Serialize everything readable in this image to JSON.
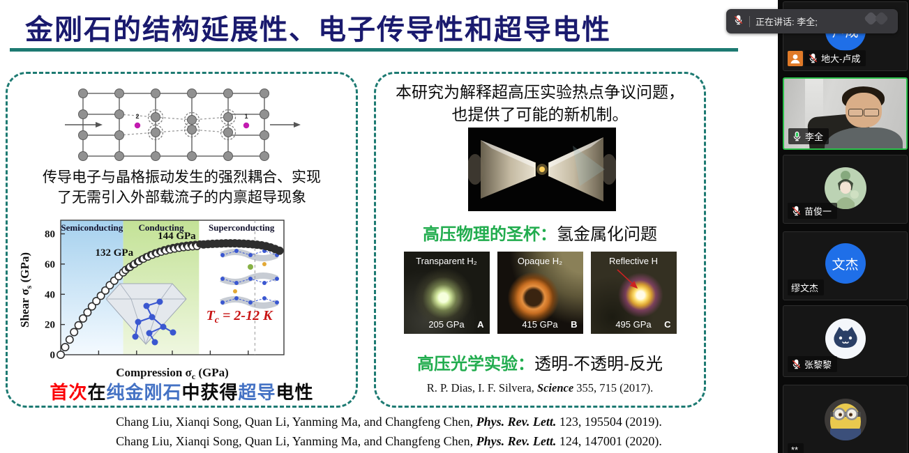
{
  "colors": {
    "title_navy": "#1a1a6e",
    "divider_teal": "#1d7a72",
    "box_border_teal": "#1d7a72",
    "heading_green": "#21ac4e",
    "highlight_red": "#fb0207",
    "highlight_blue": "#4472c4",
    "tc_red": "#c81414",
    "active_border_green": "#2bc24a",
    "badge_orange": "#e07a28",
    "avatar_blue": "#1f6fe8",
    "banner_bg": "#38383c",
    "sidebar_bg": "#0a0a0a",
    "tile_bg": "#161616"
  },
  "slide": {
    "title": "金刚石的结构延展性、电子传导性和超导电性",
    "left_panel": {
      "lattice_labels": {
        "left_dot": "2",
        "right_dot": "1"
      },
      "coupling_line1": "传导电子与晶格振动发生的强烈耦合、实现",
      "coupling_line2": "了无需引入外部载流子的内禀超导现象",
      "highlight": [
        {
          "text": "首次"
        },
        {
          "text": "在"
        },
        {
          "text": "纯金刚石"
        },
        {
          "text": "中获得"
        },
        {
          "text": "超导"
        },
        {
          "text": "电性"
        }
      ]
    },
    "right_panel": {
      "intro_line1": "本研究为解释超高压实验热点争议问题，",
      "intro_line2": "也提供了可能的新机制。",
      "holy_grail": {
        "green": "高压物理的圣杯：",
        "black": "氢金属化问题"
      },
      "photos": [
        {
          "top_label": "Transparent H₂",
          "pressure": "205 GPa",
          "letter": "A"
        },
        {
          "top_label": "Opaque H₂",
          "pressure": "415 GPa",
          "letter": "B"
        },
        {
          "top_label": "Reflective H",
          "pressure": "495 GPa",
          "letter": "C"
        }
      ],
      "optics": {
        "green": "高压光学实验：",
        "black": "透明-不透明-反光"
      },
      "citation": {
        "prefix": "R. P. Dias, I. F. Silvera, ",
        "journal": "Science",
        "suffix": " 355, 715 (2017)."
      }
    },
    "references": [
      {
        "prefix": "Chang Liu, Xianqi Song, Quan Li, Yanming Ma, and Changfeng Chen, ",
        "journal": "Phys. Rev. Lett.",
        "suffix": " 123, 195504 (2019)."
      },
      {
        "prefix": "Chang Liu, Xianqi Song, Quan Li, Yanming Ma, and Changfeng Chen, ",
        "journal": "Phys. Rev. Lett.",
        "suffix": " 124, 147001 (2020)."
      }
    ]
  },
  "chart_data": {
    "type": "scatter",
    "title": "",
    "xlabel_parts": {
      "pre": "Compression σ",
      "sub": "c",
      "post": " (GPa)"
    },
    "ylabel_parts": {
      "pre": "Shear σ",
      "sub": "s",
      "post": " (GPa)"
    },
    "xlim": [
      0,
      100
    ],
    "ylim": [
      0,
      89
    ],
    "yticks": [
      0,
      20,
      40,
      60,
      80
    ],
    "xtick_positions": [
      17,
      34,
      50,
      67,
      84
    ],
    "regions": [
      {
        "label": "Semiconducting",
        "xstart": 0,
        "xend": 28,
        "color_top": "#a6d1ee",
        "color_bottom": "#f4faff"
      },
      {
        "label": "Conducting",
        "xstart": 28,
        "xend": 62,
        "color_top": "#c3e296",
        "color_bottom": "#eff7e0"
      },
      {
        "label": "Superconducting",
        "xstart": 62,
        "xend": 100,
        "color_top": "#ffffff",
        "color_bottom": "#ffffff"
      }
    ],
    "dashed_line_x": 87,
    "annotations": [
      {
        "text": "132 GPa",
        "x": 24,
        "y": 65.5,
        "color": "#111111"
      },
      {
        "text": "144 GPa",
        "x": 52,
        "y": 76.5,
        "color": "#111111"
      },
      {
        "pre": "T",
        "sub": "c",
        "post": " = 2-12 K",
        "x": 80,
        "y": 23,
        "color": "#c81414"
      }
    ],
    "series": [
      {
        "name": "semiconducting-open",
        "marker": "open",
        "points": [
          [
            0,
            0
          ],
          [
            2,
            5
          ],
          [
            4,
            10
          ],
          [
            6,
            15
          ],
          [
            8,
            19.5
          ],
          [
            10,
            24
          ],
          [
            12,
            28
          ],
          [
            14,
            32
          ],
          [
            16,
            35.5
          ],
          [
            18,
            39
          ],
          [
            20,
            42.5
          ],
          [
            22,
            46
          ],
          [
            24,
            49
          ],
          [
            26,
            52
          ],
          [
            28,
            54.5
          ]
        ]
      },
      {
        "name": "conducting-overlap",
        "marker": "half",
        "points": [
          [
            30,
            57
          ],
          [
            32,
            59
          ],
          [
            34,
            61
          ],
          [
            36,
            62.8
          ],
          [
            38,
            64.4
          ],
          [
            40,
            65.8
          ],
          [
            42,
            67
          ],
          [
            44,
            68
          ],
          [
            46,
            69
          ],
          [
            48,
            69.8
          ],
          [
            50,
            70.5
          ],
          [
            52,
            71.1
          ],
          [
            54,
            71.6
          ],
          [
            56,
            72
          ],
          [
            58,
            72.3
          ],
          [
            60,
            72.6
          ],
          [
            62,
            72.8
          ]
        ]
      },
      {
        "name": "superconducting-filled",
        "marker": "filled",
        "points": [
          [
            64,
            73
          ],
          [
            66,
            73.2
          ],
          [
            68,
            73.4
          ],
          [
            70,
            73.5
          ],
          [
            72,
            73.6
          ],
          [
            74,
            73.7
          ],
          [
            76,
            73.7
          ],
          [
            78,
            73.7
          ],
          [
            80,
            73.6
          ],
          [
            82,
            73.5
          ],
          [
            84,
            73.3
          ],
          [
            86,
            73.1
          ],
          [
            88,
            72.8
          ],
          [
            90,
            72.4
          ],
          [
            92,
            71.8
          ],
          [
            94,
            71
          ],
          [
            96,
            70
          ],
          [
            98,
            68.8
          ]
        ]
      }
    ]
  },
  "sidebar": {
    "speaking_banner": {
      "text": "正在讲话: 李全;"
    },
    "participants": [
      {
        "name": "地大-卢成",
        "mic": "muted",
        "badge": true,
        "avatar": {
          "type": "initials",
          "text": "卢成"
        }
      },
      {
        "name": "李全",
        "mic": "active",
        "active": true,
        "avatar": {
          "type": "video"
        }
      },
      {
        "name": "苗俊一",
        "mic": "muted",
        "avatar": {
          "type": "art"
        }
      },
      {
        "name": "缪文杰",
        "mic": "none",
        "avatar": {
          "type": "initials",
          "text": "文杰"
        }
      },
      {
        "name": "张黎黎",
        "mic": "muted",
        "avatar": {
          "type": "cat"
        }
      },
      {
        "name": "**",
        "mic": "none",
        "avatar": {
          "type": "minion"
        }
      }
    ]
  }
}
